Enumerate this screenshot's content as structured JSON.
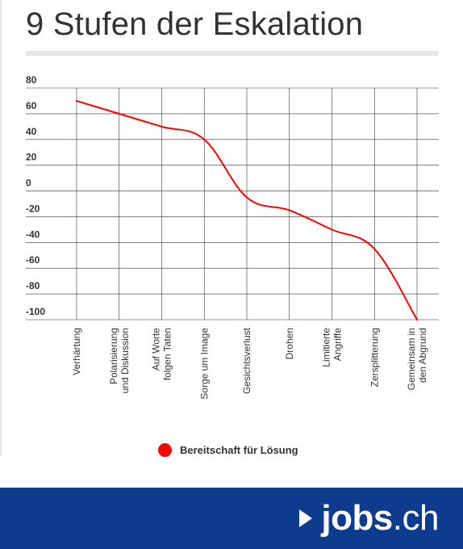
{
  "title": "9 Stufen der Eskalation",
  "chart_data": {
    "type": "line",
    "categories": [
      "Verhärtung",
      "Polarisierung und Diskussion",
      "Auf Worte folgen Taten",
      "Sorge um Image",
      "Gesichtsverlust",
      "Drohen",
      "Limitierte Angriffe",
      "Zersplitterung",
      "Gemeinsam in den Abgrund"
    ],
    "series": [
      {
        "name": "Bereitschaft für Lösung",
        "color": "#ff0000",
        "values": [
          70,
          60,
          50,
          40,
          -5,
          -15,
          -30,
          -45,
          -100
        ]
      }
    ],
    "y_ticks": [
      "80",
      "60",
      "40",
      "20",
      "0",
      "-20",
      "-40",
      "-60",
      "-80",
      "-100"
    ],
    "ylim": [
      -100,
      80
    ],
    "grid": true,
    "legend_position": "bottom"
  },
  "legend": {
    "label": "Bereitschaft für Lösung",
    "color": "#ff0000"
  },
  "footer": {
    "brand_name": "jobs",
    "brand_tld": ".ch",
    "brand_icon": "play-arrow-icon",
    "background": "#0d3c8f"
  }
}
